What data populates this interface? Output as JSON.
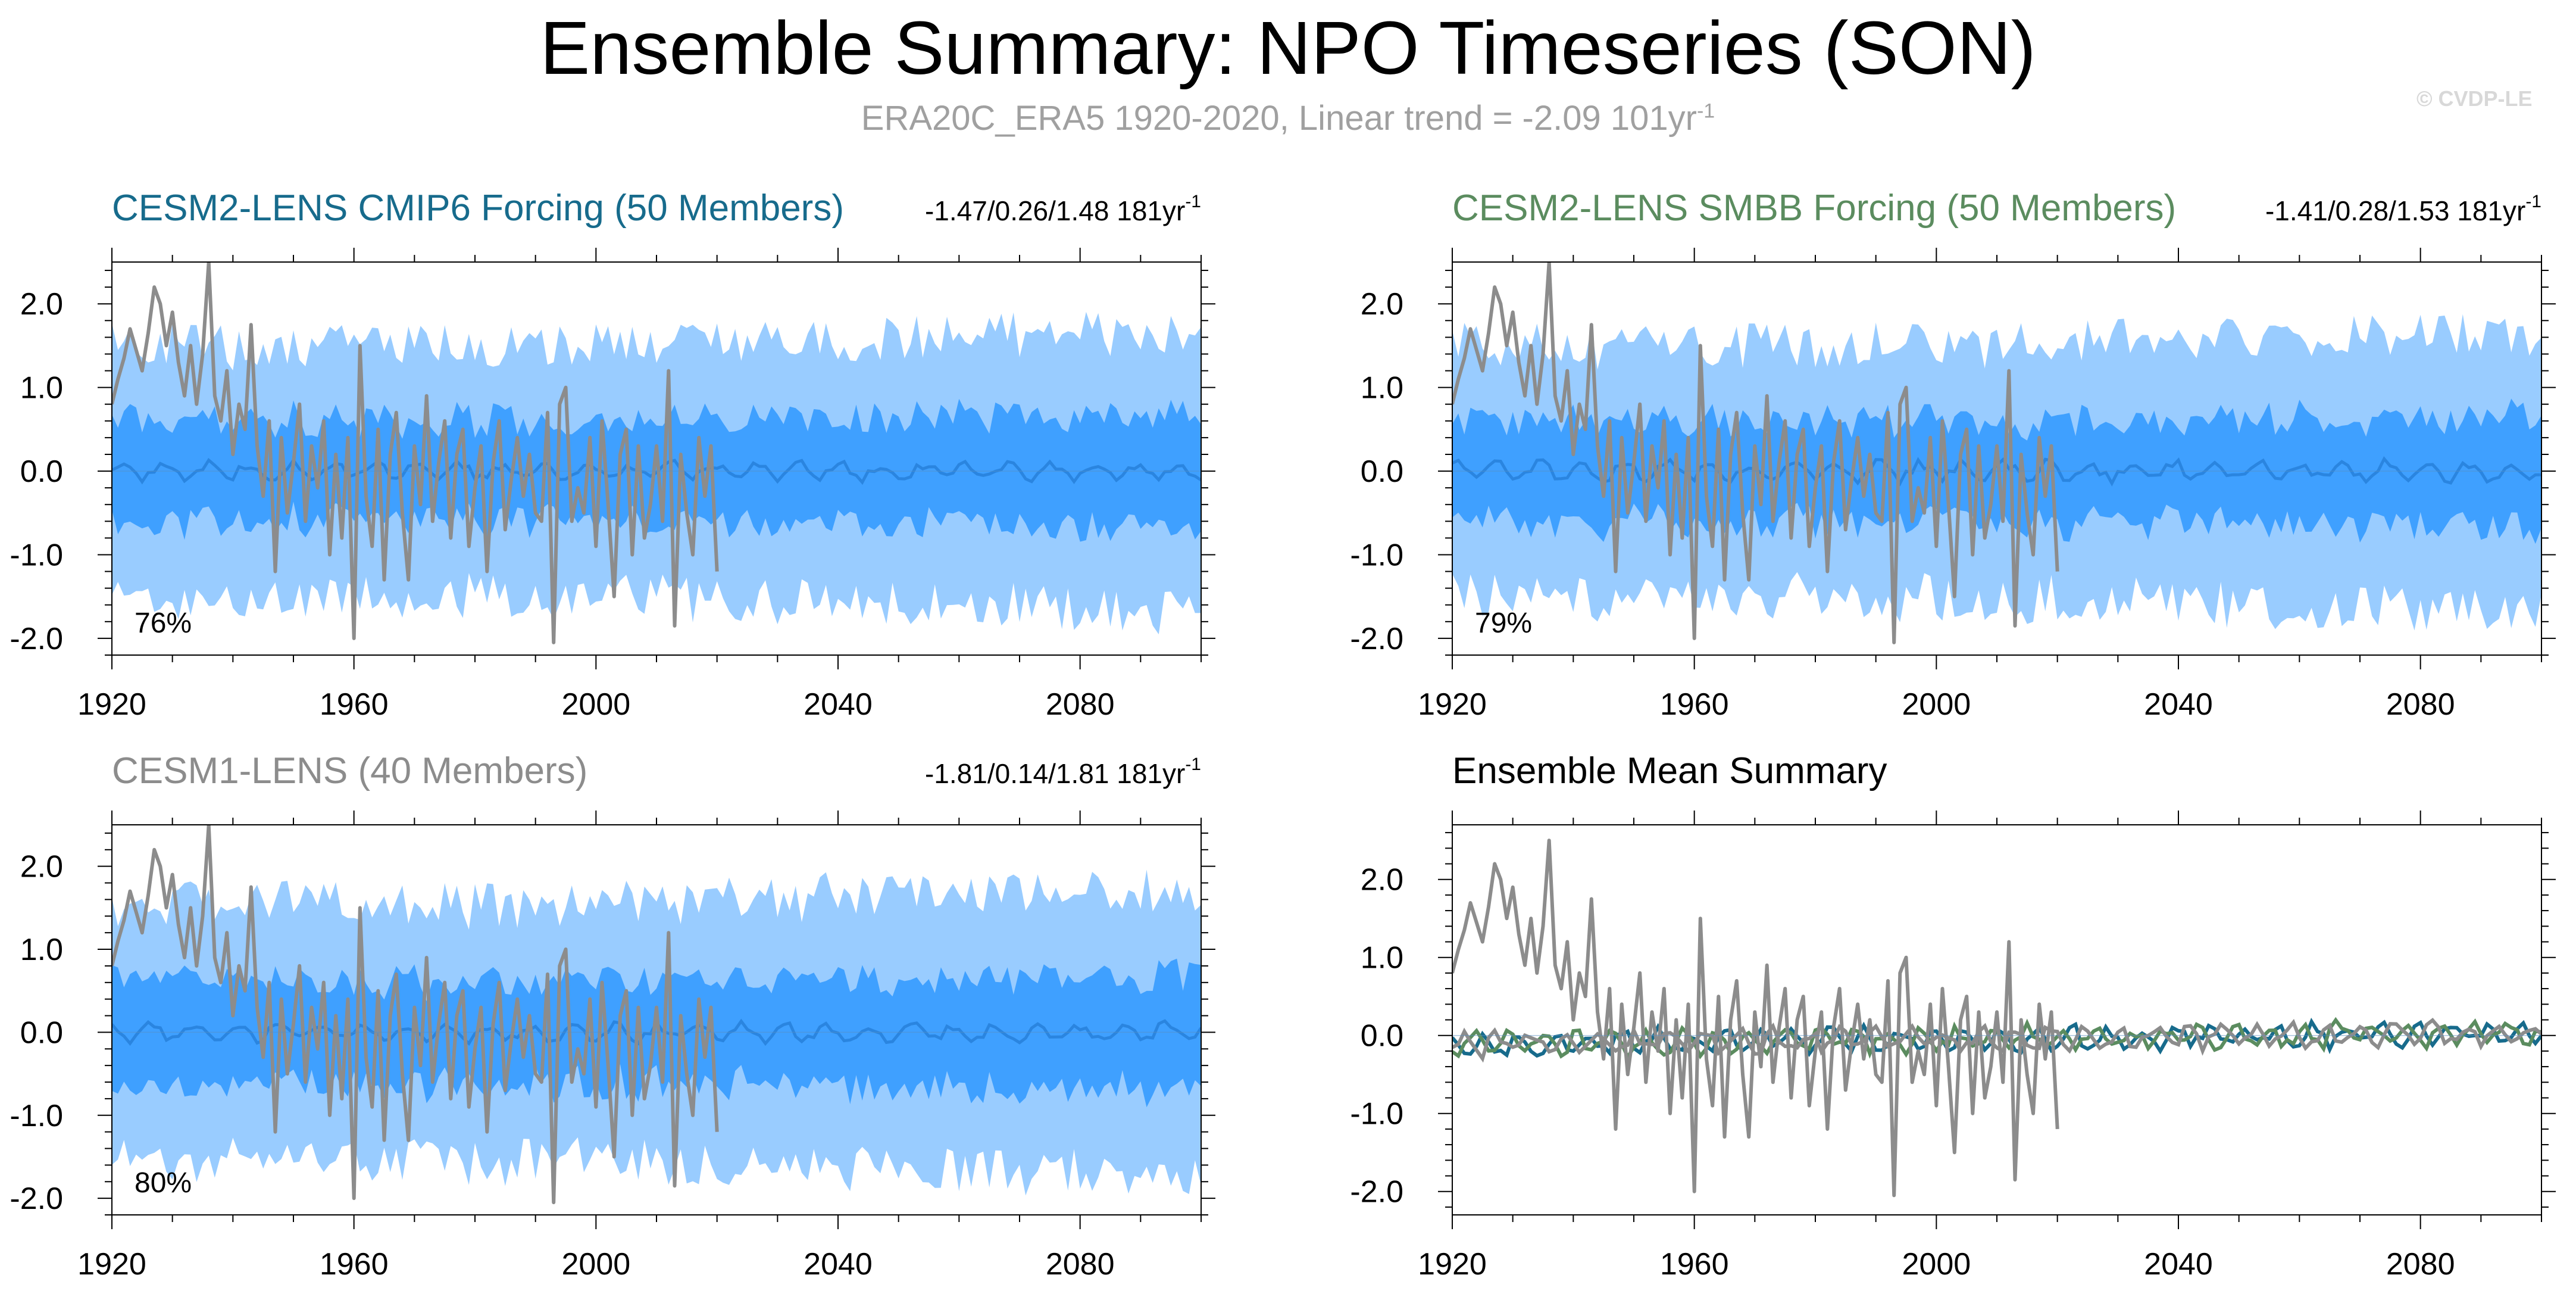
{
  "title": "Ensemble Summary: NPO Timeseries (SON)",
  "subtitle": {
    "text": "ERA20C_ERA5 1920-2020, Linear trend = -2.09 101yr",
    "superscript": "-1"
  },
  "copyright": "© CVDP-LE",
  "colors": {
    "band_outer": "#99ccff",
    "band_inner": "#3fa0ff",
    "ens_mean_line": "#2a85e0",
    "observations": "#8c8c8c",
    "cmip6_title": "#176b8c",
    "smbb_title": "#5b8c5f",
    "cesm1_title": "#8c8c8c"
  },
  "chart_data": [
    {
      "type": "area",
      "panel": "top-left",
      "title": "CESM2-LENS CMIP6 Forcing (50 Members)",
      "title_color": "#176b8c",
      "stat": {
        "text": "-1.47/0.26/1.48 181yr",
        "superscript": "-1"
      },
      "percentile_label": "76%",
      "xlim": [
        1920,
        2100
      ],
      "ylim": [
        -2.2,
        2.5
      ],
      "x_ticks": [
        1920,
        1960,
        2000,
        2040,
        2080
      ],
      "y_ticks": [
        "2.0",
        "1.0",
        "0.0",
        "-1.0",
        "-2.0"
      ],
      "y_tick_values": [
        2,
        1,
        0,
        -1,
        -2
      ],
      "outer_band": [
        -1.5,
        1.5
      ],
      "inner_band": [
        -0.6,
        0.6
      ],
      "ensemble_mean_amplitude": 0.12,
      "obs_years": [
        1920,
        2020
      ],
      "series": [
        {
          "name": "",
          "role": "ensemble_mean"
        },
        {
          "name": "",
          "role": "observations"
        }
      ]
    },
    {
      "type": "area",
      "panel": "top-right",
      "title": "CESM2-LENS SMBB Forcing (50 Members)",
      "title_color": "#5b8c5f",
      "stat": {
        "text": "-1.41/0.28/1.53 181yr",
        "superscript": "-1"
      },
      "percentile_label": "79%",
      "xlim": [
        1920,
        2100
      ],
      "ylim": [
        -2.2,
        2.5
      ],
      "x_ticks": [
        1920,
        1960,
        2000,
        2040,
        2080
      ],
      "y_ticks": [
        "2.0",
        "1.0",
        "0.0",
        "-1.0",
        "-2.0"
      ],
      "y_tick_values": [
        2,
        1,
        0,
        -1,
        -2
      ],
      "outer_band": [
        -1.5,
        1.5
      ],
      "inner_band": [
        -0.6,
        0.6
      ],
      "ensemble_mean_amplitude": 0.13,
      "obs_years": [
        1920,
        2020
      ],
      "series": [
        {
          "name": "",
          "role": "ensemble_mean"
        },
        {
          "name": "",
          "role": "observations"
        }
      ]
    },
    {
      "type": "area",
      "panel": "bottom-left",
      "title": "CESM1-LENS (40 Members)",
      "title_color": "#8c8c8c",
      "stat": {
        "text": "-1.81/0.14/1.81 181yr",
        "superscript": "-1"
      },
      "percentile_label": "80%",
      "xlim": [
        1920,
        2100
      ],
      "ylim": [
        -2.2,
        2.5
      ],
      "x_ticks": [
        1920,
        1960,
        2000,
        2040,
        2080
      ],
      "y_ticks": [
        "2.0",
        "1.0",
        "0.0",
        "-1.0",
        "-2.0"
      ],
      "y_tick_values": [
        2,
        1,
        0,
        -1,
        -2
      ],
      "outer_band": [
        -1.55,
        1.55
      ],
      "inner_band": [
        -0.62,
        0.62
      ],
      "ensemble_mean_amplitude": 0.12,
      "obs_years": [
        1920,
        2020
      ],
      "series": [
        {
          "name": "",
          "role": "ensemble_mean"
        },
        {
          "name": "",
          "role": "observations"
        }
      ]
    },
    {
      "type": "line",
      "panel": "bottom-right",
      "title": "Ensemble Mean Summary",
      "title_color": "#000000",
      "xlim": [
        1920,
        2100
      ],
      "ylim": [
        -2.3,
        2.7
      ],
      "x_ticks": [
        1920,
        1960,
        2000,
        2040,
        2080
      ],
      "y_ticks": [
        "2.0",
        "1.0",
        "0.0",
        "-1.0",
        "-2.0"
      ],
      "y_tick_values": [
        2,
        1,
        0,
        -1,
        -2
      ],
      "obs_years": [
        1920,
        2020
      ],
      "series": [
        {
          "name": "",
          "role": "observations",
          "color": "#8c8c8c"
        },
        {
          "name": "",
          "role": "ensemble_mean",
          "color": "#176b8c"
        },
        {
          "name": "",
          "role": "ensemble_mean",
          "color": "#5b8c5f"
        },
        {
          "name": "",
          "role": "ensemble_mean",
          "color": "#8c8c8c"
        }
      ]
    }
  ],
  "observations": {
    "start_year": 1920,
    "values": [
      0.8,
      1.1,
      1.35,
      1.7,
      1.45,
      1.2,
      1.65,
      2.2,
      2.0,
      1.5,
      1.9,
      1.3,
      0.9,
      1.5,
      0.8,
      1.4,
      2.5,
      0.9,
      0.6,
      1.2,
      0.2,
      0.8,
      0.5,
      1.75,
      0.3,
      -0.3,
      0.6,
      -1.2,
      0.4,
      -0.5,
      0.1,
      0.8,
      -0.6,
      0.3,
      -0.2,
      0.6,
      -1.0,
      0.2,
      -0.8,
      0.4,
      -2.0,
      1.5,
      -0.3,
      -0.9,
      0.5,
      -1.3,
      0.2,
      0.7,
      -0.5,
      -1.3,
      0.3,
      -0.4,
      0.9,
      -0.6,
      0.1,
      0.6,
      -0.8,
      0.2,
      0.5,
      -0.9,
      -0.2,
      0.3,
      -1.2,
      0.1,
      0.6,
      -0.7,
      -0.1,
      0.4,
      -0.3,
      0.2,
      -0.5,
      -0.6,
      0.7,
      -2.05,
      0.8,
      1.0,
      -0.6,
      -0.2,
      -0.5,
      0.4,
      -0.9,
      0.6,
      -0.4,
      -1.5,
      0.2,
      0.5,
      -1.0,
      0.3,
      -0.8,
      -0.4,
      0.3,
      -0.6,
      1.2,
      -1.85,
      0.2,
      -0.5,
      -1.0,
      0.4,
      -0.3,
      0.3,
      -1.2
    ]
  }
}
